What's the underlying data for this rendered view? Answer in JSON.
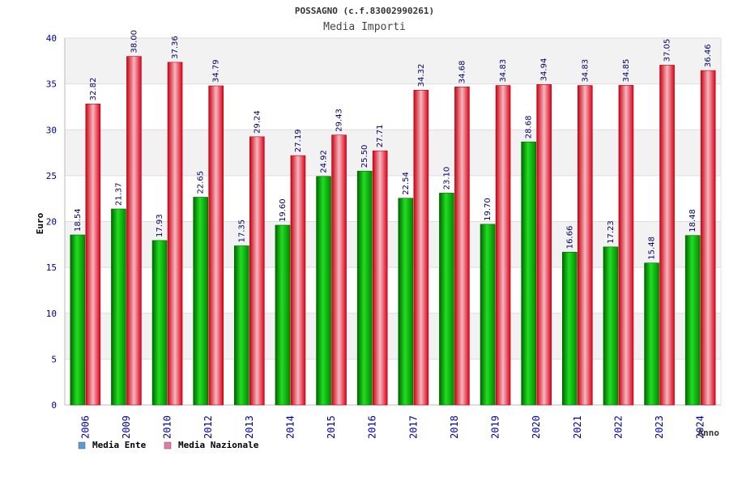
{
  "title": "POSSAGNO (c.f.83002990261)",
  "subtitle": "Media Importi",
  "chart_data": {
    "type": "bar",
    "title": "POSSAGNO (c.f.83002990261)",
    "subtitle": "Media Importi",
    "xlabel": "Anno",
    "ylabel": "Euro",
    "ylim": [
      0,
      40
    ],
    "yticks": [
      "0",
      "5",
      "10",
      "15",
      "20",
      "25",
      "30",
      "35",
      "40"
    ],
    "categories": [
      "2006",
      "2009",
      "2010",
      "2012",
      "2013",
      "2014",
      "2015",
      "2016",
      "2017",
      "2018",
      "2019",
      "2020",
      "2021",
      "2022",
      "2023",
      "2024"
    ],
    "series": [
      {
        "name": "Media Ente",
        "color": "#00a800",
        "values": [
          18.54,
          21.37,
          17.93,
          22.65,
          17.35,
          19.6,
          24.92,
          25.5,
          22.54,
          23.1,
          19.7,
          28.68,
          16.66,
          17.23,
          15.48,
          18.48
        ],
        "labels": [
          "18.54",
          "21.37",
          "17.93",
          "22.65",
          "17.35",
          "19.60",
          "24.92",
          "25.50",
          "22.54",
          "23.10",
          "19.70",
          "28.68",
          "16.66",
          "17.23",
          "15.48",
          "18.48"
        ]
      },
      {
        "name": "Media Nazionale",
        "color": "#e00010",
        "values": [
          32.82,
          38.0,
          37.36,
          34.79,
          29.24,
          27.19,
          29.43,
          27.71,
          34.32,
          34.68,
          34.83,
          34.94,
          34.83,
          34.85,
          37.05,
          36.46
        ],
        "labels": [
          "32.82",
          "38.00",
          "37.36",
          "34.79",
          "29.24",
          "27.19",
          "29.43",
          "27.71",
          "34.32",
          "34.68",
          "34.83",
          "34.94",
          "34.83",
          "34.85",
          "37.05",
          "36.46"
        ]
      }
    ],
    "legend": [
      {
        "label": "Media Ente",
        "swatch": "#5b9bd5"
      },
      {
        "label": "Media Nazionale",
        "swatch": "#e87aa8"
      }
    ],
    "legend_position": "bottom-left",
    "grid": true
  }
}
